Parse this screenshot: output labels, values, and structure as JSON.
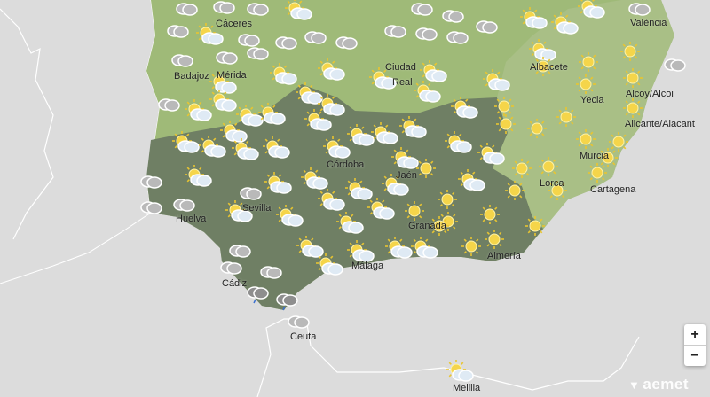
{
  "map": {
    "colors": {
      "sea": "#dcdcdc",
      "castilla": "#9fba78",
      "andalucia": "#6f7f64",
      "levante": "#a9bf86",
      "sun": "#f5d54a",
      "cloud": "#b9b9b9"
    },
    "cities": [
      "Cáceres",
      "Badajoz",
      "Mérida",
      "Ciudad",
      "Real",
      "Albacete",
      "València",
      "Yecla",
      "Alcoy/Alcoi",
      "Alicante/Alacant",
      "Murcia",
      "Lorca",
      "Cartagena",
      "Córdoba",
      "Jaén",
      "Granada",
      "Almería",
      "Málaga",
      "Sevilla",
      "Huelva",
      "Cádiz",
      "Ceuta",
      "Melilla"
    ],
    "weather_icons": [
      "cloudy",
      "cloudy",
      "cloudy",
      "partly-sunny",
      "cloudy",
      "cloudy",
      "partly-sunny",
      "partly-sunny",
      "partly-sunny",
      "cloudy",
      "cloudy",
      "partly-sunny",
      "cloudy",
      "cloudy",
      "cloudy",
      "cloudy",
      "cloudy",
      "cloudy",
      "cloudy",
      "cloudy",
      "cloudy",
      "cloudy",
      "cloudy",
      "partly-sunny",
      "partly-sunny",
      "partly-sunny",
      "partly-sunny",
      "partly-sunny",
      "partly-sunny",
      "sunny",
      "sunny",
      "sunny",
      "cloudy",
      "cloudy",
      "partly-sunny",
      "partly-sunny",
      "partly-sunny",
      "partly-sunny",
      "partly-sunny",
      "partly-sunny",
      "partly-sunny",
      "partly-sunny",
      "partly-sunny",
      "partly-sunny",
      "sunny",
      "sunny",
      "sunny",
      "sunny",
      "sunny",
      "sunny",
      "sunny",
      "partly-sunny",
      "partly-sunny",
      "partly-sunny",
      "partly-sunny",
      "partly-sunny",
      "partly-sunny",
      "partly-sunny",
      "partly-sunny",
      "partly-sunny",
      "partly-sunny",
      "partly-sunny",
      "sunny",
      "sunny",
      "sunny",
      "partly-sunny",
      "cloudy",
      "cloudy",
      "partly-sunny",
      "partly-sunny",
      "partly-sunny",
      "partly-sunny",
      "partly-sunny",
      "partly-sunny",
      "sunny",
      "partly-sunny",
      "sunny",
      "sunny",
      "sunny",
      "sunny",
      "sunny",
      "sunny",
      "cloudy",
      "cloudy",
      "partly-sunny",
      "partly-sunny",
      "partly-sunny",
      "partly-sunny",
      "sunny",
      "sunny",
      "sunny",
      "sunny",
      "sunny",
      "cloudy",
      "cloudy",
      "cloudy",
      "partly-sunny",
      "partly-sunny",
      "partly-sunny",
      "partly-sunny",
      "partly-sunny",
      "sunny",
      "sunny",
      "rain",
      "rain",
      "cloudy",
      "partly-sunny"
    ]
  },
  "controls": {
    "zoom_in": "+",
    "zoom_out": "−"
  },
  "logo": {
    "text": "aemet"
  }
}
